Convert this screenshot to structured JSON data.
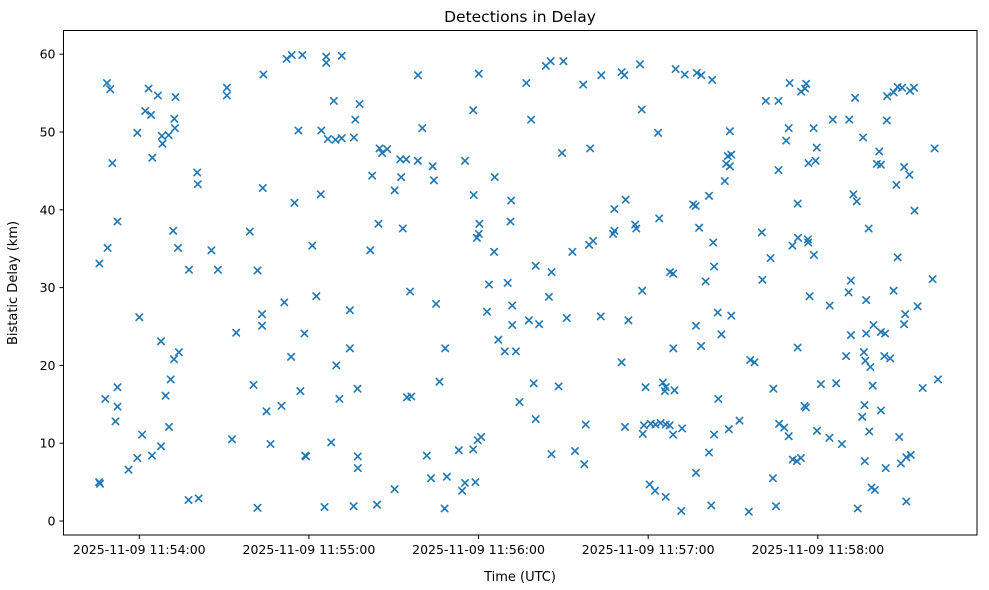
{
  "figure": {
    "title": "Detections in Delay",
    "xlabel": "Time (UTC)",
    "ylabel": "Bistatic Delay (km)"
  },
  "chart_data": {
    "type": "scatter",
    "title": "Detections in Delay",
    "xlabel": "Time (UTC)",
    "ylabel": "Bistatic Delay (km)",
    "marker": "x",
    "marker_color": "#1f77b4",
    "background_color": "#ffffff",
    "grid": "off",
    "legend": "none",
    "x_axis": {
      "unit": "seconds since 2025-11-09 11:53:00 UTC",
      "xlim": [
        33.2,
        356.3
      ],
      "ticks": [
        {
          "t": 60,
          "label": "2025-11-09 11:54:00"
        },
        {
          "t": 120,
          "label": "2025-11-09 11:55:00"
        },
        {
          "t": 180,
          "label": "2025-11-09 11:56:00"
        },
        {
          "t": 240,
          "label": "2025-11-09 11:57:00"
        },
        {
          "t": 300,
          "label": "2025-11-09 11:58:00"
        }
      ]
    },
    "y_axis": {
      "ylim": [
        -1.8,
        63.05
      ],
      "ticks": [
        0,
        10,
        20,
        30,
        40,
        50,
        60
      ]
    },
    "points": [
      [
        112.1,
        59.4
      ],
      [
        103.9,
        57.4
      ],
      [
        48.6,
        56.3
      ],
      [
        49.7,
        55.5
      ],
      [
        63.3,
        55.6
      ],
      [
        66.6,
        54.7
      ],
      [
        72.8,
        54.5
      ],
      [
        91.0,
        55.7
      ],
      [
        91.0,
        54.7
      ],
      [
        62.1,
        52.7
      ],
      [
        64.2,
        52.2
      ],
      [
        72.4,
        51.7
      ],
      [
        72.6,
        50.5
      ],
      [
        70.4,
        49.6
      ],
      [
        59.3,
        49.9
      ],
      [
        68.0,
        49.5
      ],
      [
        68.2,
        48.5
      ],
      [
        64.6,
        46.7
      ],
      [
        50.5,
        46.0
      ],
      [
        80.5,
        44.8
      ],
      [
        80.7,
        43.3
      ],
      [
        103.7,
        42.8
      ],
      [
        52.3,
        38.5
      ],
      [
        72.0,
        37.3
      ],
      [
        99.1,
        37.2
      ],
      [
        48.8,
        35.1
      ],
      [
        73.7,
        35.1
      ],
      [
        85.5,
        34.8
      ],
      [
        45.9,
        33.1
      ],
      [
        77.6,
        32.3
      ],
      [
        87.8,
        32.3
      ],
      [
        101.8,
        32.2
      ],
      [
        117.7,
        59.9
      ],
      [
        113.9,
        59.9
      ],
      [
        126.1,
        59.7
      ],
      [
        126.1,
        58.9
      ],
      [
        131.6,
        59.8
      ],
      [
        158.6,
        57.3
      ],
      [
        180.1,
        57.5
      ],
      [
        128.8,
        54.0
      ],
      [
        137.9,
        53.6
      ],
      [
        178.1,
        52.8
      ],
      [
        136.4,
        51.6
      ],
      [
        116.3,
        50.2
      ],
      [
        124.4,
        50.2
      ],
      [
        160.1,
        50.5
      ],
      [
        126.7,
        49.1
      ],
      [
        129.4,
        49.0
      ],
      [
        131.6,
        49.2
      ],
      [
        135.9,
        49.3
      ],
      [
        145.0,
        47.9
      ],
      [
        145.9,
        47.3
      ],
      [
        147.7,
        47.8
      ],
      [
        152.3,
        46.5
      ],
      [
        154.4,
        46.5
      ],
      [
        158.5,
        46.3
      ],
      [
        163.8,
        45.6
      ],
      [
        175.2,
        46.3
      ],
      [
        142.4,
        44.4
      ],
      [
        152.6,
        44.2
      ],
      [
        164.2,
        43.8
      ],
      [
        185.7,
        44.2
      ],
      [
        150.3,
        42.5
      ],
      [
        124.2,
        42.0
      ],
      [
        114.9,
        40.9
      ],
      [
        178.3,
        41.9
      ],
      [
        191.5,
        41.2
      ],
      [
        144.6,
        38.2
      ],
      [
        153.2,
        37.6
      ],
      [
        180.3,
        38.2
      ],
      [
        191.3,
        38.5
      ],
      [
        180.1,
        36.9
      ],
      [
        179.4,
        36.4
      ],
      [
        121.2,
        35.4
      ],
      [
        141.7,
        34.8
      ],
      [
        185.5,
        34.6
      ],
      [
        203.8,
        58.5
      ],
      [
        205.5,
        59.1
      ],
      [
        210.0,
        59.1
      ],
      [
        237.1,
        58.7
      ],
      [
        230.6,
        57.7
      ],
      [
        231.6,
        57.3
      ],
      [
        223.4,
        57.3
      ],
      [
        196.9,
        56.3
      ],
      [
        217.0,
        56.1
      ],
      [
        249.7,
        58.1
      ],
      [
        252.9,
        57.4
      ],
      [
        257.2,
        57.6
      ],
      [
        258.8,
        57.3
      ],
      [
        262.6,
        56.7
      ],
      [
        198.6,
        51.6
      ],
      [
        237.7,
        52.9
      ],
      [
        243.5,
        49.9
      ],
      [
        268.9,
        50.1
      ],
      [
        209.5,
        47.3
      ],
      [
        219.5,
        47.9
      ],
      [
        268.2,
        46.9
      ],
      [
        269.4,
        47.1
      ],
      [
        267.6,
        45.9
      ],
      [
        268.9,
        45.6
      ],
      [
        267.1,
        43.7
      ],
      [
        232.0,
        41.3
      ],
      [
        228.0,
        40.1
      ],
      [
        261.5,
        41.8
      ],
      [
        255.9,
        40.7
      ],
      [
        256.8,
        40.5
      ],
      [
        243.9,
        38.9
      ],
      [
        235.4,
        38.1
      ],
      [
        235.8,
        37.6
      ],
      [
        258.0,
        37.7
      ],
      [
        227.6,
        36.9
      ],
      [
        228.1,
        37.3
      ],
      [
        219.1,
        35.5
      ],
      [
        220.5,
        36.0
      ],
      [
        213.2,
        34.6
      ],
      [
        263.0,
        35.8
      ],
      [
        200.2,
        32.8
      ],
      [
        205.8,
        32.0
      ],
      [
        247.7,
        32.0
      ],
      [
        248.8,
        31.8
      ],
      [
        263.3,
        32.7
      ],
      [
        290.0,
        56.3
      ],
      [
        294.1,
        55.2
      ],
      [
        295.9,
        56.2
      ],
      [
        295.5,
        55.6
      ],
      [
        281.6,
        54.0
      ],
      [
        286.1,
        54.0
      ],
      [
        313.2,
        54.4
      ],
      [
        324.5,
        54.6
      ],
      [
        326.8,
        55.1
      ],
      [
        328.2,
        55.8
      ],
      [
        329.8,
        55.7
      ],
      [
        332.6,
        55.3
      ],
      [
        334.0,
        55.7
      ],
      [
        311.1,
        51.6
      ],
      [
        324.4,
        51.5
      ],
      [
        289.7,
        50.5
      ],
      [
        298.5,
        50.5
      ],
      [
        305.3,
        51.6
      ],
      [
        288.8,
        48.9
      ],
      [
        316.0,
        49.3
      ],
      [
        299.6,
        48.0
      ],
      [
        341.3,
        47.9
      ],
      [
        321.7,
        47.5
      ],
      [
        296.7,
        46.0
      ],
      [
        299.2,
        46.3
      ],
      [
        320.9,
        45.9
      ],
      [
        322.3,
        45.8
      ],
      [
        286.1,
        45.1
      ],
      [
        330.5,
        45.5
      ],
      [
        332.4,
        44.5
      ],
      [
        327.8,
        43.2
      ],
      [
        312.6,
        42.0
      ],
      [
        313.8,
        41.1
      ],
      [
        292.9,
        40.8
      ],
      [
        334.2,
        39.9
      ],
      [
        318.0,
        37.6
      ],
      [
        280.2,
        37.1
      ],
      [
        293.0,
        36.4
      ],
      [
        291.0,
        35.4
      ],
      [
        296.5,
        36.2
      ],
      [
        296.6,
        35.8
      ],
      [
        283.3,
        33.8
      ],
      [
        298.6,
        34.2
      ],
      [
        328.2,
        33.9
      ],
      [
        111.3,
        28.1
      ],
      [
        103.4,
        26.6
      ],
      [
        103.4,
        25.1
      ],
      [
        60.0,
        26.2
      ],
      [
        94.3,
        24.2
      ],
      [
        67.7,
        23.1
      ],
      [
        74.0,
        21.7
      ],
      [
        72.3,
        20.8
      ],
      [
        113.7,
        21.1
      ],
      [
        71.1,
        18.2
      ],
      [
        52.3,
        17.2
      ],
      [
        48.0,
        15.7
      ],
      [
        52.3,
        14.7
      ],
      [
        100.4,
        17.5
      ],
      [
        69.3,
        16.1
      ],
      [
        105.0,
        14.1
      ],
      [
        110.3,
        14.8
      ],
      [
        51.6,
        12.8
      ],
      [
        70.5,
        12.1
      ],
      [
        61.0,
        11.1
      ],
      [
        92.8,
        10.5
      ],
      [
        106.4,
        9.9
      ],
      [
        67.7,
        9.6
      ],
      [
        64.5,
        8.4
      ],
      [
        59.3,
        8.1
      ],
      [
        56.2,
        6.6
      ],
      [
        45.8,
        5.0
      ],
      [
        46.1,
        4.8
      ],
      [
        77.4,
        2.7
      ],
      [
        81.0,
        2.9
      ],
      [
        101.8,
        1.7
      ],
      [
        155.8,
        29.5
      ],
      [
        122.6,
        28.9
      ],
      [
        183.7,
        30.4
      ],
      [
        190.3,
        30.6
      ],
      [
        165.0,
        27.9
      ],
      [
        134.5,
        27.1
      ],
      [
        183.0,
        26.9
      ],
      [
        191.9,
        27.7
      ],
      [
        191.9,
        25.2
      ],
      [
        118.4,
        24.1
      ],
      [
        134.5,
        22.2
      ],
      [
        168.2,
        22.2
      ],
      [
        187.0,
        23.3
      ],
      [
        189.3,
        21.8
      ],
      [
        193.2,
        21.8
      ],
      [
        129.7,
        20.0
      ],
      [
        166.2,
        17.9
      ],
      [
        117.0,
        16.7
      ],
      [
        137.2,
        17.0
      ],
      [
        130.8,
        15.7
      ],
      [
        154.7,
        15.9
      ],
      [
        156.2,
        16.0
      ],
      [
        127.9,
        10.1
      ],
      [
        118.7,
        8.4
      ],
      [
        119.0,
        8.3
      ],
      [
        137.3,
        8.3
      ],
      [
        137.3,
        6.8
      ],
      [
        161.7,
        8.4
      ],
      [
        173.0,
        9.1
      ],
      [
        178.1,
        9.2
      ],
      [
        179.7,
        10.4
      ],
      [
        180.9,
        10.8
      ],
      [
        163.2,
        5.5
      ],
      [
        168.8,
        5.7
      ],
      [
        175.2,
        4.9
      ],
      [
        174.2,
        3.9
      ],
      [
        178.9,
        5.0
      ],
      [
        150.3,
        4.1
      ],
      [
        125.5,
        1.8
      ],
      [
        135.8,
        1.9
      ],
      [
        144.1,
        2.1
      ],
      [
        168.0,
        1.6
      ],
      [
        260.3,
        30.8
      ],
      [
        237.9,
        29.6
      ],
      [
        204.9,
        28.8
      ],
      [
        197.8,
        25.8
      ],
      [
        201.4,
        25.3
      ],
      [
        211.2,
        26.1
      ],
      [
        223.2,
        26.3
      ],
      [
        233.0,
        25.8
      ],
      [
        264.6,
        26.8
      ],
      [
        269.4,
        26.4
      ],
      [
        256.9,
        25.1
      ],
      [
        265.9,
        24.0
      ],
      [
        248.9,
        22.2
      ],
      [
        258.7,
        22.5
      ],
      [
        230.6,
        20.4
      ],
      [
        199.5,
        17.7
      ],
      [
        208.3,
        17.3
      ],
      [
        239.1,
        17.2
      ],
      [
        245.2,
        17.8
      ],
      [
        246.2,
        17.2
      ],
      [
        245.9,
        16.7
      ],
      [
        249.3,
        16.8
      ],
      [
        194.5,
        15.3
      ],
      [
        264.8,
        15.7
      ],
      [
        200.2,
        13.1
      ],
      [
        217.9,
        12.4
      ],
      [
        231.8,
        12.1
      ],
      [
        238.5,
        12.3
      ],
      [
        240.9,
        12.5
      ],
      [
        242.6,
        12.4
      ],
      [
        244.4,
        12.6
      ],
      [
        246.2,
        12.4
      ],
      [
        247.6,
        12.3
      ],
      [
        238.1,
        11.2
      ],
      [
        248.8,
        11.1
      ],
      [
        252.0,
        11.9
      ],
      [
        272.3,
        12.9
      ],
      [
        268.5,
        11.8
      ],
      [
        263.3,
        11.1
      ],
      [
        261.5,
        8.8
      ],
      [
        205.8,
        8.6
      ],
      [
        214.1,
        9.0
      ],
      [
        217.4,
        7.3
      ],
      [
        256.9,
        6.2
      ],
      [
        240.5,
        4.7
      ],
      [
        242.4,
        3.9
      ],
      [
        246.2,
        3.1
      ],
      [
        251.7,
        1.3
      ],
      [
        262.3,
        2.0
      ],
      [
        280.4,
        31.0
      ],
      [
        311.7,
        30.9
      ],
      [
        310.9,
        29.4
      ],
      [
        326.8,
        29.6
      ],
      [
        340.6,
        31.1
      ],
      [
        297.1,
        28.9
      ],
      [
        317.1,
        28.4
      ],
      [
        304.2,
        27.7
      ],
      [
        335.3,
        27.6
      ],
      [
        330.9,
        26.6
      ],
      [
        330.5,
        25.3
      ],
      [
        319.7,
        25.2
      ],
      [
        317.1,
        24.1
      ],
      [
        322.3,
        24.3
      ],
      [
        323.8,
        24.1
      ],
      [
        311.7,
        23.9
      ],
      [
        292.9,
        22.3
      ],
      [
        276.1,
        20.7
      ],
      [
        277.6,
        20.4
      ],
      [
        310.0,
        21.2
      ],
      [
        316.3,
        21.7
      ],
      [
        316.8,
        20.6
      ],
      [
        323.5,
        21.2
      ],
      [
        325.6,
        20.9
      ],
      [
        318.6,
        19.8
      ],
      [
        342.5,
        18.2
      ],
      [
        337.1,
        17.1
      ],
      [
        301.1,
        17.6
      ],
      [
        306.5,
        17.7
      ],
      [
        319.4,
        17.4
      ],
      [
        284.3,
        17.0
      ],
      [
        295.3,
        14.8
      ],
      [
        295.8,
        14.6
      ],
      [
        316.5,
        14.9
      ],
      [
        322.3,
        14.2
      ],
      [
        315.7,
        13.4
      ],
      [
        286.3,
        12.5
      ],
      [
        288.1,
        12.0
      ],
      [
        289.7,
        10.9
      ],
      [
        299.7,
        11.6
      ],
      [
        304.1,
        10.7
      ],
      [
        308.5,
        9.9
      ],
      [
        318.2,
        11.5
      ],
      [
        328.8,
        10.8
      ],
      [
        291.1,
        7.9
      ],
      [
        292.6,
        7.7
      ],
      [
        294.0,
        8.1
      ],
      [
        316.6,
        7.7
      ],
      [
        324.0,
        6.8
      ],
      [
        329.4,
        7.4
      ],
      [
        331.3,
        8.2
      ],
      [
        332.9,
        8.5
      ],
      [
        284.1,
        5.5
      ],
      [
        319.0,
        4.3
      ],
      [
        320.2,
        4.0
      ],
      [
        331.3,
        2.5
      ],
      [
        285.2,
        1.9
      ],
      [
        314.1,
        1.6
      ],
      [
        275.6,
        1.2
      ]
    ]
  }
}
